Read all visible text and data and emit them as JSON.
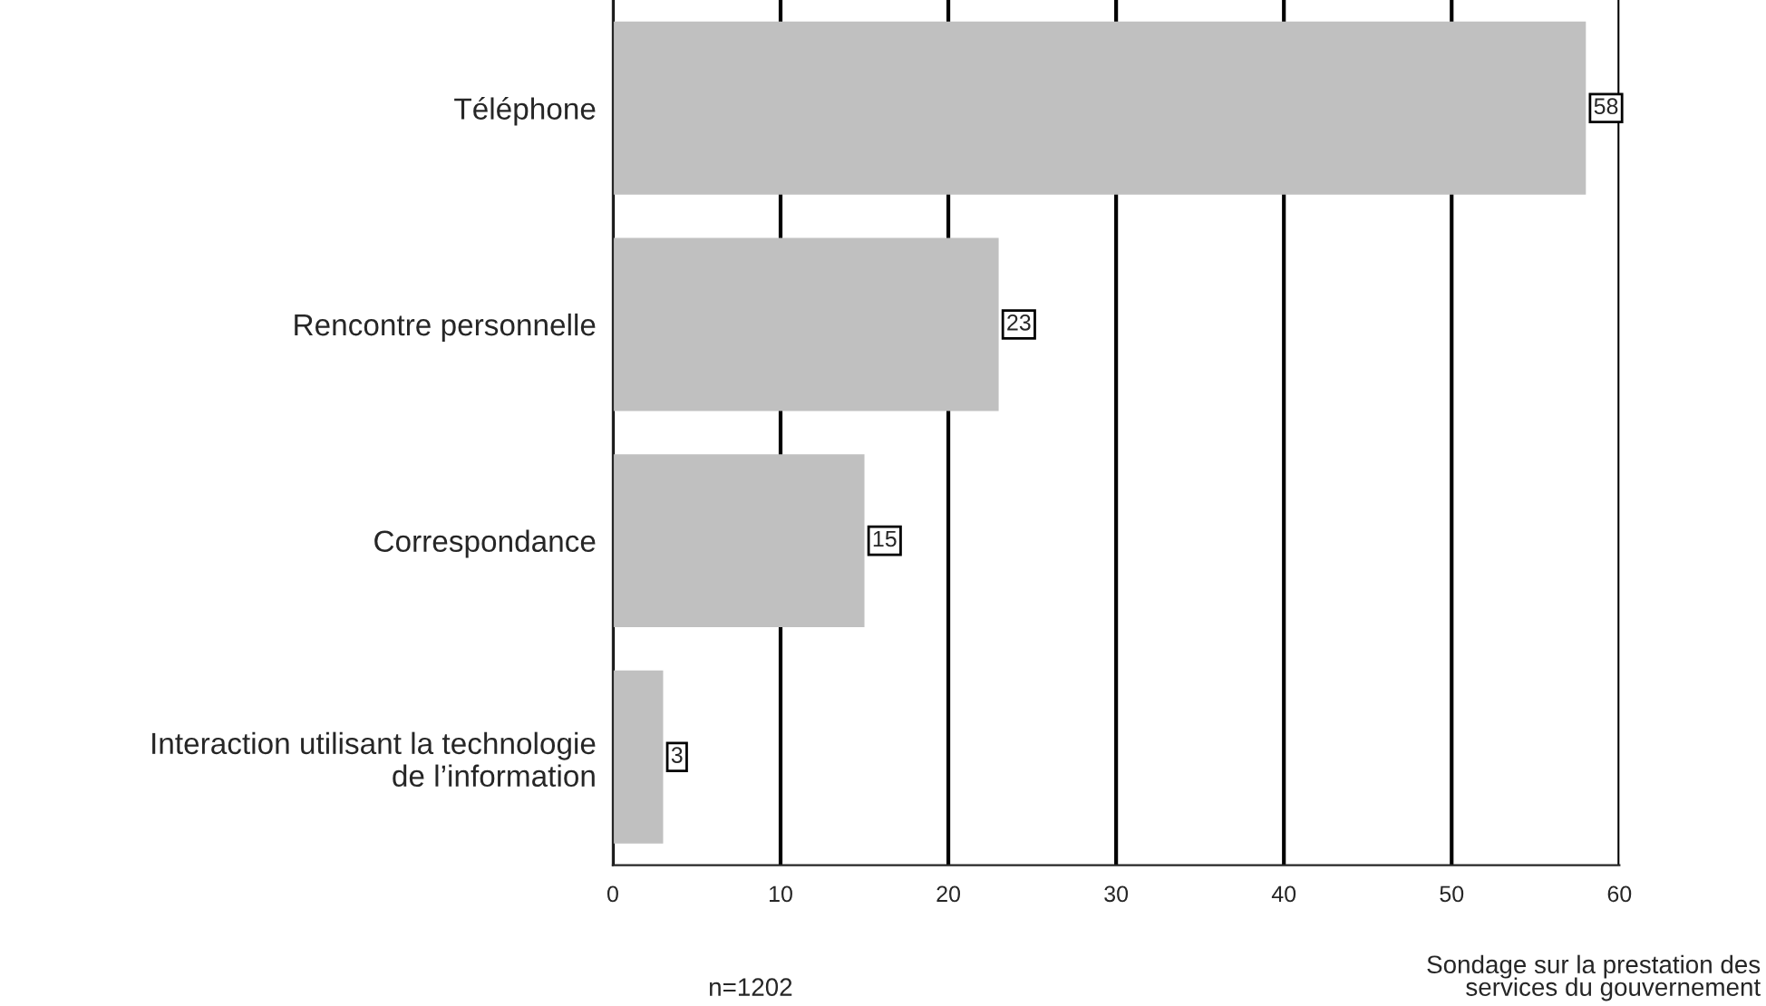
{
  "chart_data": {
    "type": "bar",
    "orientation": "horizontal",
    "categories": [
      "Téléphone",
      "Rencontre personnelle",
      "Correspondance",
      "Interaction utilisant la technologie\nde l’information"
    ],
    "values": [
      58,
      23,
      15,
      3
    ],
    "color": "#c0c0c0",
    "xlim": [
      0,
      60
    ],
    "xticks": [
      0,
      10,
      20,
      30,
      40,
      50,
      60
    ],
    "grid": "x",
    "data_labels": true,
    "annotations": [
      "n=1202",
      "Sondage sur la prestation des\nservices du gouvernement"
    ]
  }
}
